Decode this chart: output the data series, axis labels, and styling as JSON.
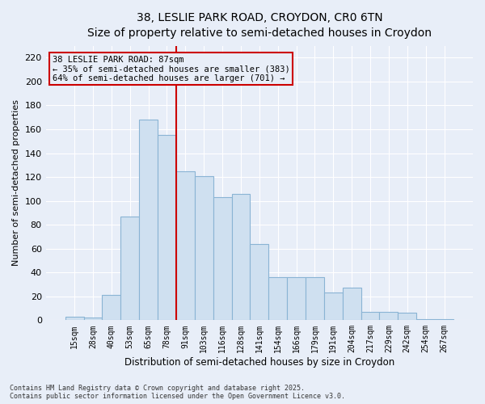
{
  "title_line1": "38, LESLIE PARK ROAD, CROYDON, CR0 6TN",
  "title_line2": "Size of property relative to semi-detached houses in Croydon",
  "xlabel": "Distribution of semi-detached houses by size in Croydon",
  "ylabel": "Number of semi-detached properties",
  "categories": [
    "15sqm",
    "28sqm",
    "40sqm",
    "53sqm",
    "65sqm",
    "78sqm",
    "91sqm",
    "103sqm",
    "116sqm",
    "128sqm",
    "141sqm",
    "154sqm",
    "166sqm",
    "179sqm",
    "191sqm",
    "204sqm",
    "217sqm",
    "229sqm",
    "242sqm",
    "254sqm",
    "267sqm"
  ],
  "values": [
    3,
    2,
    21,
    87,
    168,
    155,
    125,
    121,
    103,
    106,
    64,
    36,
    36,
    36,
    23,
    27,
    7,
    7,
    6,
    1,
    1
  ],
  "bar_color": "#cfe0f0",
  "bar_edge_color": "#8ab4d4",
  "background_color": "#e8eef8",
  "grid_color": "#ffffff",
  "vline_color": "#cc0000",
  "vline_xindex": 5.5,
  "annotation_title": "38 LESLIE PARK ROAD: 87sqm",
  "annotation_line1": "← 35% of semi-detached houses are smaller (383)",
  "annotation_line2": "64% of semi-detached houses are larger (701) →",
  "annotation_box_edgecolor": "#cc0000",
  "ylim": [
    0,
    230
  ],
  "yticks": [
    0,
    20,
    40,
    60,
    80,
    100,
    120,
    140,
    160,
    180,
    200,
    220
  ],
  "footnote_line1": "Contains HM Land Registry data © Crown copyright and database right 2025.",
  "footnote_line2": "Contains public sector information licensed under the Open Government Licence v3.0."
}
